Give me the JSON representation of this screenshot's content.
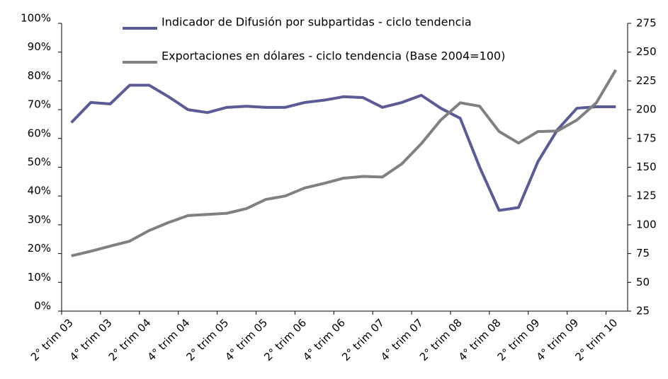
{
  "chart_data": {
    "type": "line",
    "categories": [
      "2° trim 03",
      null,
      "4° trim 03",
      null,
      "2° trim 04",
      null,
      "4° trim 04",
      null,
      "2° trim 05",
      null,
      "4° trim 05",
      null,
      "2° trim 06",
      null,
      "4° trim 06",
      null,
      "2° trim 07",
      null,
      "4° trim 07",
      null,
      "2° trim 08",
      null,
      "4° trim 08",
      null,
      "2° trim 09",
      null,
      "4° trim 09",
      null,
      "2° trim 10"
    ],
    "series": [
      {
        "name": "Indicador de Difusión por subpartidas - ciclo tendencia",
        "color": "#5b5b95",
        "values": [
          65.5,
          72.5,
          72,
          78.5,
          78.5,
          74.5,
          70,
          69,
          70.8,
          71.2,
          70.8,
          70.8,
          72.5,
          73.3,
          74.5,
          74.2,
          70.8,
          72.5,
          75,
          70.5,
          67,
          50,
          35,
          36,
          52,
          63,
          70.5,
          71,
          71
        ]
      },
      {
        "name": "Exportaciones en dólares - ciclo tendencia (Base 2004=100)",
        "color": "#808080",
        "axis": "y2",
        "values": [
          73,
          77,
          81.5,
          85.8,
          95,
          102,
          108,
          109,
          110,
          114,
          122,
          125,
          132,
          136,
          140.5,
          142,
          141.5,
          153,
          170.5,
          191,
          206,
          203,
          181,
          171,
          181,
          181.5,
          191,
          206,
          234.5
        ]
      }
    ],
    "ylim": [
      0,
      100
    ],
    "yticks": [
      {
        "value": 0,
        "label": "0%"
      },
      {
        "value": 10,
        "label": "10%"
      },
      {
        "value": 20,
        "label": "20%"
      },
      {
        "value": 30,
        "label": "30%"
      },
      {
        "value": 40,
        "label": "40%"
      },
      {
        "value": 50,
        "label": "50%"
      },
      {
        "value": 60,
        "label": "60%"
      },
      {
        "value": 70,
        "label": "70%"
      },
      {
        "value": 80,
        "label": "80%"
      },
      {
        "value": 90,
        "label": "90%"
      },
      {
        "value": 100,
        "label": "100%"
      }
    ],
    "y2lim": [
      25,
      275
    ],
    "y2ticks": [
      25,
      50,
      75,
      100,
      125,
      150,
      175,
      200,
      225,
      250,
      275
    ],
    "legend": "top"
  }
}
